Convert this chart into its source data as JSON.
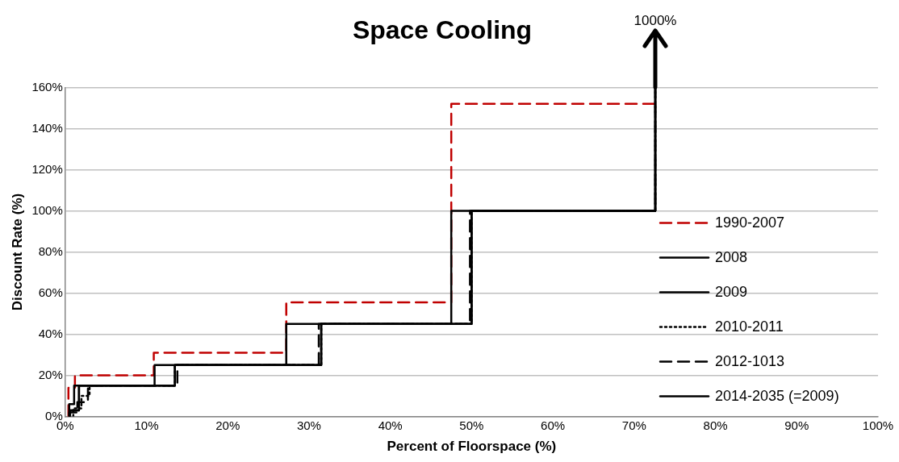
{
  "chart_data": {
    "type": "line",
    "title": "Space Cooling",
    "xlabel": "Percent of Floorspace (%)",
    "ylabel": "Discount Rate (%)",
    "xlim": [
      0,
      100
    ],
    "ylim": [
      0,
      160
    ],
    "xticks": [
      {
        "value": 0,
        "label": "0%"
      },
      {
        "value": 10,
        "label": "10%"
      },
      {
        "value": 20,
        "label": "20%"
      },
      {
        "value": 30,
        "label": "30%"
      },
      {
        "value": 40,
        "label": "40%"
      },
      {
        "value": 50,
        "label": "50%"
      },
      {
        "value": 60,
        "label": "60%"
      },
      {
        "value": 70,
        "label": "70%"
      },
      {
        "value": 80,
        "label": "80%"
      },
      {
        "value": 90,
        "label": "90%"
      },
      {
        "value": 100,
        "label": "100%"
      }
    ],
    "yticks": [
      {
        "value": 0,
        "label": "0%"
      },
      {
        "value": 20,
        "label": "20%"
      },
      {
        "value": 40,
        "label": "40%"
      },
      {
        "value": 60,
        "label": "60%"
      },
      {
        "value": 80,
        "label": "80%"
      },
      {
        "value": 100,
        "label": "100%"
      },
      {
        "value": 120,
        "label": "120%"
      },
      {
        "value": 140,
        "label": "140%"
      },
      {
        "value": 160,
        "label": "160%"
      }
    ],
    "grid": "y",
    "legend": "right",
    "annotations": [
      "1000%"
    ],
    "series": [
      {
        "name": "1990-2007",
        "color": "#c00000",
        "line_style": "dashed",
        "x": [
          0.4,
          0.4,
          1.2,
          1.2,
          10.9,
          10.9,
          27.2,
          27.2,
          47.5,
          47.5,
          72.6
        ],
        "values": [
          0,
          14,
          14,
          20,
          20,
          31,
          31,
          55.5,
          55.5,
          152,
          152
        ]
      },
      {
        "name": "2008",
        "color": "#000000",
        "line_style": "solid",
        "x": [
          0.5,
          0.5,
          1.1,
          1.1,
          11,
          11,
          27.2,
          27.2,
          47.5,
          47.5,
          72.6,
          72.6
        ],
        "values": [
          0,
          6,
          6,
          15,
          15,
          25,
          25,
          45,
          45,
          100,
          100,
          160
        ]
      },
      {
        "name": "2009",
        "color": "#000000",
        "line_style": "solid",
        "x": [
          0.6,
          0.6,
          1.7,
          1.7,
          13.5,
          13.5,
          31.5,
          31.5,
          50,
          50,
          72.6,
          72.6
        ],
        "values": [
          0,
          3,
          3,
          15,
          15,
          25,
          25,
          45,
          45,
          100,
          100,
          160
        ]
      },
      {
        "name": "2010-2011",
        "color": "#000000",
        "line_style": "dotted",
        "x": [
          1,
          1,
          2,
          2,
          3,
          3,
          13.5,
          13.5,
          31.5,
          31.5,
          50,
          50,
          72.6,
          72.6
        ],
        "values": [
          0,
          4,
          4,
          10,
          10,
          15,
          15,
          25,
          25,
          45,
          45,
          100,
          100,
          160
        ]
      },
      {
        "name": "2012-1013",
        "color": "#000000",
        "line_style": "dashed",
        "x": [
          0.5,
          0.5,
          1.5,
          1.5,
          2.8,
          2.8,
          13.8,
          13.8,
          31.2,
          31.2,
          49.8,
          49.8,
          72.6,
          72.6
        ],
        "values": [
          0,
          2,
          2,
          7,
          7,
          15,
          15,
          25,
          25,
          45,
          45,
          100,
          100,
          160
        ]
      },
      {
        "name": "2014-2035 (=2009)",
        "color": "#000000",
        "line_style": "solid",
        "x": [
          0.6,
          0.6,
          1.7,
          1.7,
          13.5,
          13.5,
          31.5,
          31.5,
          50,
          50,
          72.6,
          72.6
        ],
        "values": [
          0,
          3,
          3,
          15,
          15,
          25,
          25,
          45,
          45,
          100,
          100,
          160
        ]
      }
    ]
  }
}
